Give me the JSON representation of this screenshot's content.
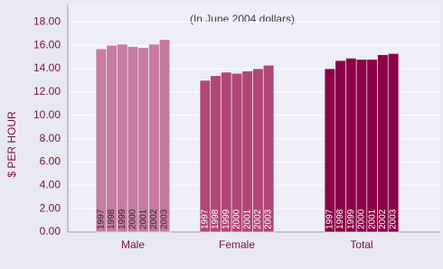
{
  "chart_data": {
    "type": "bar",
    "annotation": "(In June 2004 dollars)",
    "y_label": "$ PER HOUR",
    "categories": [
      "Male",
      "Female",
      "Total"
    ],
    "category_colors": [
      "#c47ca3",
      "#b04577",
      "#8c0047"
    ],
    "series": [
      {
        "name": "1997",
        "values": [
          15.7,
          13.0,
          14.0
        ]
      },
      {
        "name": "1998",
        "values": [
          16.0,
          13.4,
          14.7
        ]
      },
      {
        "name": "1999",
        "values": [
          16.1,
          13.7,
          14.9
        ]
      },
      {
        "name": "2000",
        "values": [
          15.9,
          13.6,
          14.8
        ]
      },
      {
        "name": "2001",
        "values": [
          15.8,
          13.8,
          14.8
        ]
      },
      {
        "name": "2002",
        "values": [
          16.1,
          14.0,
          15.2
        ]
      },
      {
        "name": "2003",
        "values": [
          16.5,
          14.3,
          15.3
        ]
      }
    ],
    "ylim": [
      0,
      19.5
    ],
    "yticks": [
      {
        "value": 0,
        "label": "0.00"
      },
      {
        "value": 2,
        "label": "2.00"
      },
      {
        "value": 4,
        "label": "4.00"
      },
      {
        "value": 6,
        "label": "6.00"
      },
      {
        "value": 8,
        "label": "8.00"
      },
      {
        "value": 10,
        "label": "10.00"
      },
      {
        "value": 12,
        "label": "12.00"
      },
      {
        "value": 14,
        "label": "14.00"
      },
      {
        "value": 16,
        "label": "16.00"
      },
      {
        "value": 18,
        "label": "18.00"
      }
    ],
    "grid": true
  }
}
